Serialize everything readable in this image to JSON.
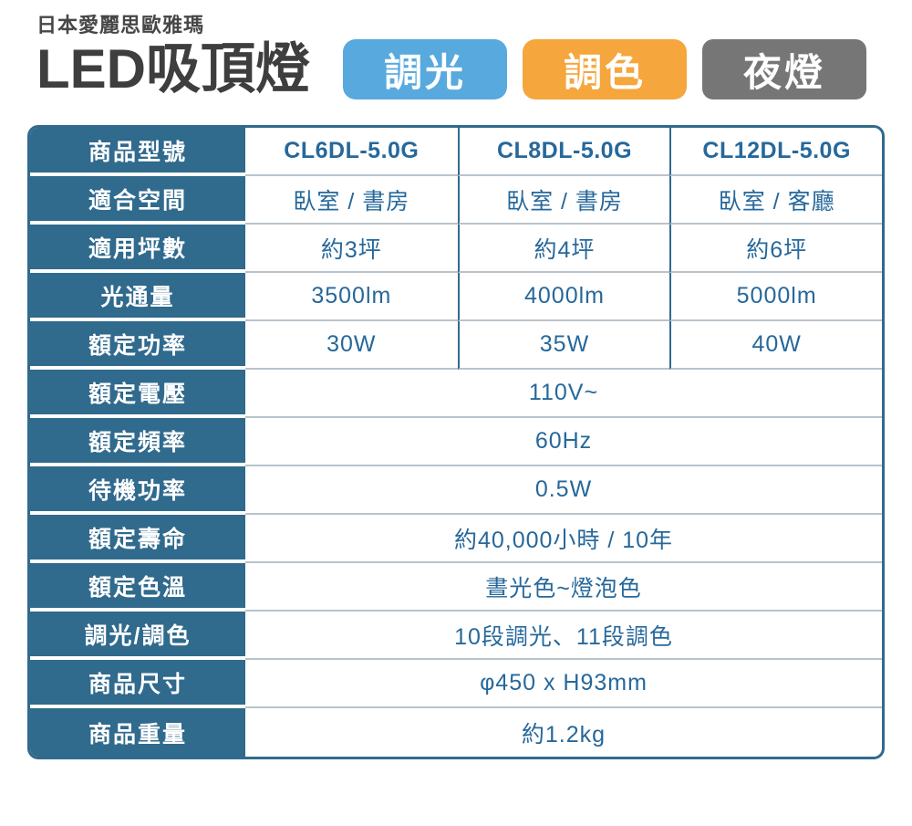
{
  "header": {
    "brand": "日本愛麗思歐雅瑪",
    "title": "LED吸頂燈",
    "badges": [
      {
        "name": "dimming",
        "label": "調光",
        "color": "#58a9de"
      },
      {
        "name": "color-tuning",
        "label": "調色",
        "color": "#f5a63c"
      },
      {
        "name": "night-light",
        "label": "夜燈",
        "color": "#767676"
      }
    ]
  },
  "colors": {
    "table_teal": "#306a8d",
    "value_text": "#26689b",
    "title_text": "#3e3e3e",
    "row_divider": "#b9c3cb"
  },
  "table": {
    "rows": [
      {
        "label": "商品型號",
        "values": [
          "CL6DL-5.0G",
          "CL8DL-5.0G",
          "CL12DL-5.0G"
        ]
      },
      {
        "label": "適合空間",
        "values": [
          "臥室 / 書房",
          "臥室 / 書房",
          "臥室 / 客廳"
        ]
      },
      {
        "label": "適用坪數",
        "values": [
          "約3坪",
          "約4坪",
          "約6坪"
        ]
      },
      {
        "label": "光通量",
        "values": [
          "3500lm",
          "4000lm",
          "5000lm"
        ]
      },
      {
        "label": "額定功率",
        "values": [
          "30W",
          "35W",
          "40W"
        ]
      },
      {
        "label": "額定電壓",
        "value": "110V~"
      },
      {
        "label": "額定頻率",
        "value": "60Hz"
      },
      {
        "label": "待機功率",
        "value": "0.5W"
      },
      {
        "label": "額定壽命",
        "value": "約40,000小時 / 10年"
      },
      {
        "label": "額定色溫",
        "value": "晝光色~燈泡色"
      },
      {
        "label": "調光/調色",
        "value": "10段調光、11段調色"
      },
      {
        "label": "商品尺寸",
        "value": "φ450 x H93mm"
      },
      {
        "label": "商品重量",
        "value": "約1.2kg"
      }
    ]
  }
}
